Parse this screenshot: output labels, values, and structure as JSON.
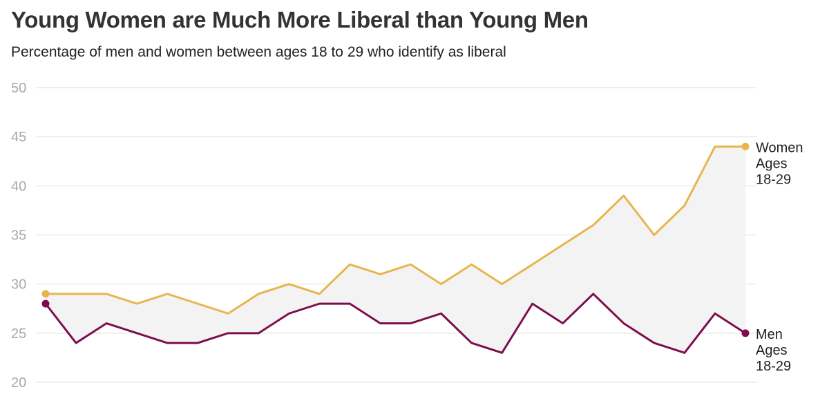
{
  "title": "Young Women are Much More Liberal than Young Men",
  "subtitle": "Percentage of men and women between ages 18 to 29 who identify as liberal",
  "chart_data": {
    "type": "line",
    "title": "Young Women are Much More Liberal than Young Men",
    "subtitle": "Percentage of men and women between ages 18 to 29 who identify as liberal",
    "xlabel": "",
    "ylabel": "",
    "ylim": [
      20,
      50
    ],
    "yticks": [
      "20",
      "25",
      "30",
      "35",
      "40",
      "45",
      "50"
    ],
    "grid": true,
    "legend": "direct labels at right end of lines",
    "fill_between_series": true,
    "fill_color": "#f3f3f3",
    "series": [
      {
        "name": "Women Ages 18-29",
        "label_lines": [
          "Women",
          "Ages",
          "18-29"
        ],
        "color": "#e8b54d",
        "values": [
          29,
          29,
          29,
          28,
          29,
          28,
          27,
          29,
          30,
          29,
          32,
          31,
          32,
          30,
          32,
          30,
          32,
          34,
          36,
          39,
          35,
          38,
          44,
          44
        ]
      },
      {
        "name": "Men Ages 18-29",
        "label_lines": [
          "Men",
          "Ages",
          "18-29"
        ],
        "color": "#7d0e4e",
        "values": [
          28,
          24,
          26,
          25,
          24,
          24,
          25,
          25,
          27,
          28,
          28,
          26,
          26,
          27,
          24,
          23,
          28,
          26,
          29,
          26,
          24,
          23,
          27,
          25
        ]
      }
    ]
  }
}
